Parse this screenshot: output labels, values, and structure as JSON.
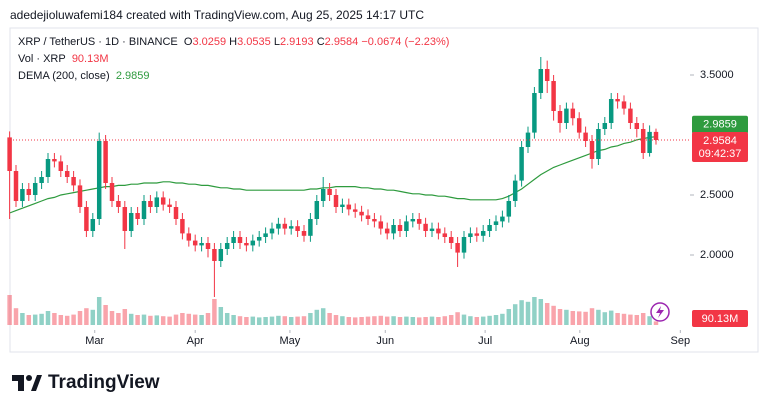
{
  "header": {
    "attribution": "adedejioluwafemi184 created with TradingView.com, Aug 25, 2025 14:17 UTC"
  },
  "chart_data": {
    "type": "candlestick",
    "symbol": "XRP / TetherUS · 1D · BINANCE",
    "ohlc_keys": [
      "O",
      "H",
      "L",
      "C"
    ],
    "change": {
      "value": -0.0674,
      "label": "−0.0674"
    },
    "change_percent": {
      "value": -2.23,
      "label": "(−2.23%)"
    },
    "up_color": "#089981",
    "down_color": "#f23645",
    "open": [
      2.98,
      2.7,
      2.45,
      2.55,
      2.5,
      2.6,
      2.65,
      2.8,
      2.78,
      2.7,
      2.65,
      2.58,
      2.4,
      2.2,
      2.3,
      2.95,
      2.6,
      2.45,
      2.4,
      2.2,
      2.35,
      2.3,
      2.45,
      2.4,
      2.48,
      2.42,
      2.4,
      2.3,
      2.18,
      2.12,
      2.08,
      2.1,
      2.05,
      1.95,
      2.05,
      2.1,
      2.15,
      2.1,
      2.08,
      2.12,
      2.15,
      2.18,
      2.22,
      2.26,
      2.22,
      2.24,
      2.2,
      2.16,
      2.3,
      2.45,
      2.55,
      2.5,
      2.4,
      2.42,
      2.38,
      2.36,
      2.33,
      2.3,
      2.28,
      2.22,
      2.18,
      2.25,
      2.2,
      2.28,
      2.3,
      2.26,
      2.2,
      2.22,
      2.18,
      2.15,
      2.1,
      2.02,
      2.15,
      2.18,
      2.16,
      2.2,
      2.25,
      2.28,
      2.32,
      2.45,
      2.62,
      2.9,
      3.02,
      3.35,
      3.55,
      3.45,
      3.2,
      3.1,
      3.22,
      3.14,
      3.02,
      2.95,
      2.8,
      3.05,
      3.1,
      3.3,
      3.28,
      3.22,
      3.1,
      3.05,
      2.85,
      3.0259
    ],
    "high": [
      3.03,
      2.75,
      2.6,
      2.6,
      2.65,
      2.7,
      2.85,
      2.85,
      2.83,
      2.75,
      2.7,
      2.63,
      2.45,
      2.35,
      3.02,
      3.0,
      2.65,
      2.5,
      2.45,
      2.4,
      2.4,
      2.5,
      2.5,
      2.53,
      2.53,
      2.47,
      2.45,
      2.35,
      2.23,
      2.17,
      2.15,
      2.15,
      2.1,
      2.1,
      2.15,
      2.2,
      2.2,
      2.15,
      2.17,
      2.2,
      2.23,
      2.27,
      2.31,
      2.31,
      2.29,
      2.29,
      2.25,
      2.35,
      2.5,
      2.65,
      2.6,
      2.55,
      2.47,
      2.47,
      2.43,
      2.41,
      2.38,
      2.35,
      2.33,
      2.27,
      2.3,
      2.3,
      2.33,
      2.35,
      2.35,
      2.31,
      2.27,
      2.27,
      2.23,
      2.2,
      2.15,
      2.2,
      2.23,
      2.23,
      2.25,
      2.3,
      2.33,
      2.37,
      2.5,
      2.67,
      2.95,
      3.07,
      3.4,
      3.65,
      3.62,
      3.5,
      3.25,
      3.27,
      3.27,
      3.19,
      3.07,
      3.0,
      3.1,
      3.15,
      3.35,
      3.35,
      3.33,
      3.27,
      3.15,
      3.1,
      3.08,
      3.0535
    ],
    "low": [
      2.3,
      2.4,
      2.4,
      2.45,
      2.45,
      2.55,
      2.6,
      2.73,
      2.65,
      2.6,
      2.53,
      2.35,
      2.15,
      2.15,
      2.25,
      2.55,
      2.4,
      2.35,
      2.05,
      2.15,
      2.25,
      2.25,
      2.35,
      2.35,
      2.37,
      2.35,
      2.25,
      2.13,
      2.07,
      2.03,
      2.03,
      1.98,
      1.65,
      1.9,
      2.0,
      2.05,
      2.05,
      2.03,
      2.03,
      2.07,
      2.1,
      2.13,
      2.17,
      2.17,
      2.17,
      2.15,
      2.11,
      2.11,
      2.25,
      2.4,
      2.45,
      2.35,
      2.35,
      2.33,
      2.31,
      2.28,
      2.25,
      2.23,
      2.17,
      2.13,
      2.13,
      2.15,
      2.15,
      2.23,
      2.21,
      2.15,
      2.15,
      2.13,
      2.1,
      2.05,
      1.9,
      1.97,
      2.1,
      2.11,
      2.11,
      2.15,
      2.2,
      2.23,
      2.27,
      2.4,
      2.57,
      2.85,
      2.97,
      3.3,
      3.35,
      3.12,
      3.02,
      3.05,
      3.08,
      2.97,
      2.9,
      2.72,
      2.75,
      3.0,
      3.05,
      3.22,
      3.17,
      3.05,
      2.98,
      2.8,
      2.82,
      2.9193
    ],
    "close": [
      2.7,
      2.45,
      2.55,
      2.5,
      2.6,
      2.65,
      2.8,
      2.78,
      2.7,
      2.65,
      2.58,
      2.4,
      2.2,
      2.3,
      2.95,
      2.6,
      2.45,
      2.4,
      2.2,
      2.35,
      2.3,
      2.45,
      2.4,
      2.48,
      2.42,
      2.4,
      2.3,
      2.18,
      2.12,
      2.08,
      2.1,
      2.05,
      1.95,
      2.05,
      2.1,
      2.15,
      2.1,
      2.08,
      2.12,
      2.15,
      2.18,
      2.22,
      2.26,
      2.22,
      2.24,
      2.2,
      2.16,
      2.3,
      2.45,
      2.55,
      2.5,
      2.4,
      2.42,
      2.38,
      2.36,
      2.33,
      2.3,
      2.28,
      2.22,
      2.18,
      2.25,
      2.2,
      2.28,
      2.3,
      2.26,
      2.2,
      2.22,
      2.18,
      2.15,
      2.1,
      2.02,
      2.15,
      2.18,
      2.16,
      2.2,
      2.25,
      2.28,
      2.32,
      2.45,
      2.62,
      2.9,
      3.02,
      3.35,
      3.55,
      3.45,
      3.2,
      3.1,
      3.22,
      3.14,
      3.02,
      2.95,
      2.8,
      3.05,
      3.1,
      3.3,
      3.28,
      3.22,
      3.1,
      3.05,
      2.85,
      3.0259,
      2.9584
    ],
    "volume": {
      "name": "Vol · XRP",
      "last_label": "90.13M",
      "vlim": [
        0,
        1600
      ],
      "values": [
        750,
        420,
        300,
        250,
        260,
        280,
        350,
        300,
        250,
        230,
        260,
        350,
        420,
        380,
        700,
        500,
        350,
        300,
        400,
        280,
        250,
        260,
        230,
        240,
        220,
        210,
        260,
        300,
        280,
        260,
        250,
        300,
        650,
        450,
        300,
        250,
        220,
        200,
        210,
        190,
        200,
        210,
        230,
        220,
        200,
        210,
        220,
        300,
        380,
        420,
        300,
        250,
        220,
        200,
        190,
        200,
        210,
        220,
        230,
        210,
        220,
        200,
        210,
        200,
        190,
        200,
        210,
        200,
        220,
        250,
        320,
        260,
        220,
        200,
        210,
        230,
        250,
        280,
        400,
        520,
        620,
        580,
        700,
        650,
        550,
        480,
        400,
        380,
        350,
        340,
        330,
        420,
        380,
        320,
        360,
        300,
        280,
        260,
        250,
        300,
        220,
        90.13
      ]
    },
    "dema": {
      "name": "DEMA (200, close)",
      "color": "#2e9b3e",
      "values": [
        2.35,
        2.37,
        2.39,
        2.41,
        2.43,
        2.45,
        2.47,
        2.48,
        2.5,
        2.51,
        2.52,
        2.53,
        2.54,
        2.55,
        2.56,
        2.57,
        2.57,
        2.58,
        2.58,
        2.59,
        2.59,
        2.6,
        2.6,
        2.6,
        2.61,
        2.61,
        2.6,
        2.6,
        2.59,
        2.59,
        2.58,
        2.58,
        2.57,
        2.56,
        2.56,
        2.55,
        2.55,
        2.54,
        2.54,
        2.54,
        2.54,
        2.54,
        2.54,
        2.54,
        2.54,
        2.54,
        2.54,
        2.55,
        2.55,
        2.56,
        2.56,
        2.57,
        2.57,
        2.57,
        2.57,
        2.56,
        2.56,
        2.55,
        2.55,
        2.54,
        2.54,
        2.53,
        2.52,
        2.51,
        2.51,
        2.5,
        2.5,
        2.49,
        2.49,
        2.48,
        2.47,
        2.47,
        2.46,
        2.46,
        2.46,
        2.46,
        2.46,
        2.47,
        2.49,
        2.52,
        2.55,
        2.59,
        2.63,
        2.67,
        2.7,
        2.73,
        2.75,
        2.77,
        2.79,
        2.81,
        2.83,
        2.85,
        2.87,
        2.88,
        2.9,
        2.91,
        2.93,
        2.94,
        2.96,
        2.97,
        2.98,
        2.9859
      ]
    },
    "countdown": "09:42:37",
    "ylim": [
      1.375,
      3.875
    ],
    "yticks": [
      {
        "value": 3.5,
        "label": "3.5000"
      },
      {
        "value": 2.5,
        "label": "2.5000"
      },
      {
        "value": 2.0,
        "label": "2.0000"
      }
    ],
    "xlim": [
      -1.5,
      106
    ],
    "xticks": [
      {
        "value": 13.3,
        "label": "Mar"
      },
      {
        "value": 29.0,
        "label": "Apr"
      },
      {
        "value": 43.8,
        "label": "May"
      },
      {
        "value": 58.7,
        "label": "Jun"
      },
      {
        "value": 74.3,
        "label": "Jul"
      },
      {
        "value": 89.1,
        "label": "Aug"
      },
      {
        "value": 104.8,
        "label": "Sep"
      }
    ],
    "grid": false
  },
  "footer": {
    "logo": "TradingView"
  }
}
